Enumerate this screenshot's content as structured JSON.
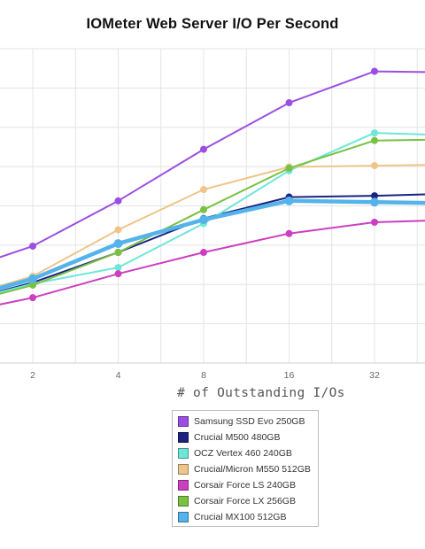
{
  "chart_data": {
    "type": "line",
    "title": "IOMeter Web Server I/O Per Second",
    "xlabel": "# of Outstanding I/Os",
    "ylabel": "",
    "x_scale": "log2",
    "x": [
      1,
      2,
      4,
      8,
      16,
      32,
      64
    ],
    "x_tick_labels": [
      "2",
      "4",
      "8",
      "16",
      "32"
    ],
    "x_tick_values": [
      2,
      4,
      8,
      16,
      32
    ],
    "grid": true,
    "legend_position": "bottom",
    "series": [
      {
        "name": "Samsung SSD Evo 250GB",
        "color": "#9b4fe0",
        "values": [
          3.5,
          4.65,
          6.45,
          8.5,
          10.35,
          11.6,
          11.55
        ]
      },
      {
        "name": "Crucial M500 480GB",
        "color": "#1a237e",
        "values": [
          2.3,
          3.2,
          4.4,
          5.75,
          6.6,
          6.65,
          6.75
        ]
      },
      {
        "name": "OCZ Vertex 460 240GB",
        "color": "#6ee6d9",
        "values": [
          2.3,
          3.15,
          3.8,
          5.55,
          7.65,
          9.15,
          9.05
        ]
      },
      {
        "name": "Crucial/Micron M550 512GB",
        "color": "#eec58a",
        "values": [
          2.45,
          3.45,
          5.3,
          6.9,
          7.8,
          7.85,
          7.9
        ]
      },
      {
        "name": "Corsair Force LS 240GB",
        "color": "#cc3fc0",
        "values": [
          1.9,
          2.6,
          3.55,
          4.4,
          5.15,
          5.6,
          5.7
        ]
      },
      {
        "name": "Corsair Force LX 256GB",
        "color": "#7ac143",
        "values": [
          2.2,
          3.1,
          4.4,
          6.1,
          7.75,
          8.85,
          8.9
        ]
      },
      {
        "name": "Crucial MX100 512GB",
        "color": "#53b3ea",
        "values": [
          2.4,
          3.35,
          4.75,
          5.7,
          6.45,
          6.4,
          6.35
        ]
      }
    ]
  }
}
